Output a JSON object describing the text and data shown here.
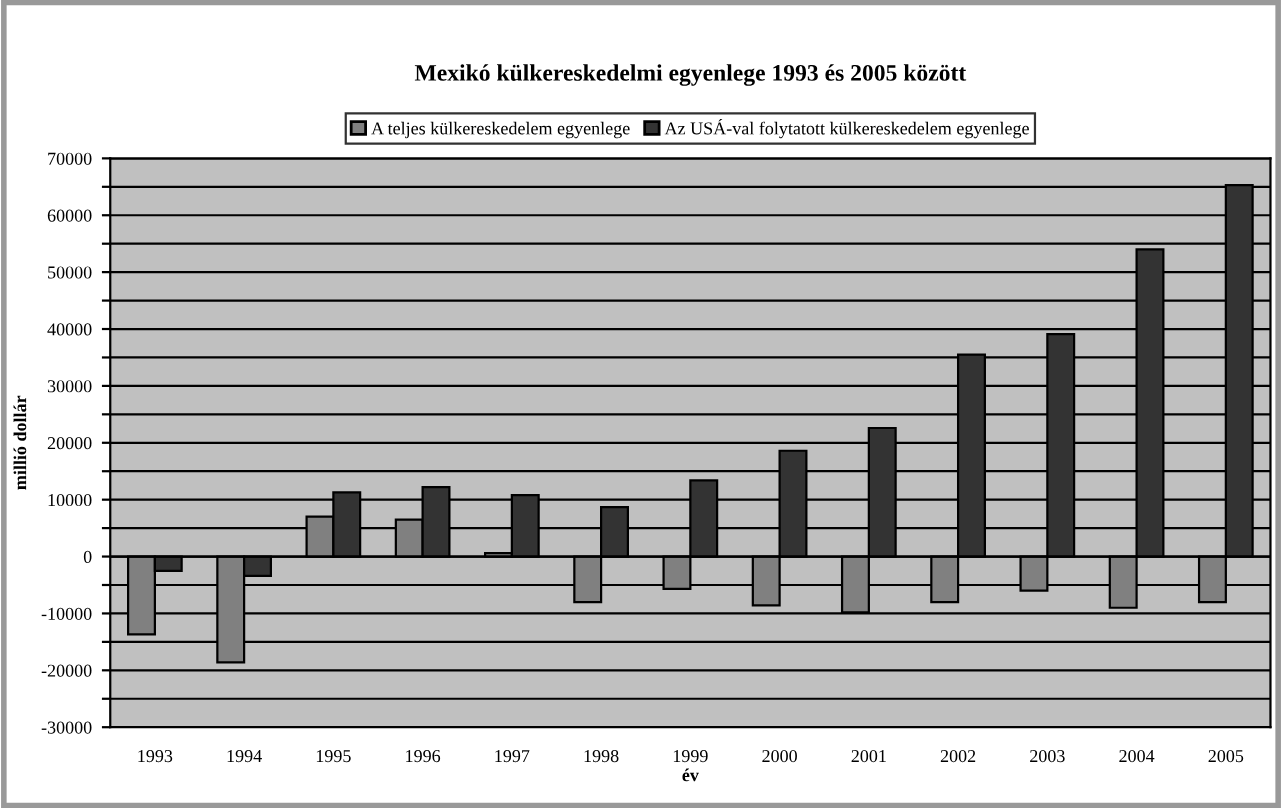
{
  "chart_data": {
    "type": "bar",
    "title": "Mexikó külkereskedelmi egyenlege 1993 és 2005 között",
    "xlabel": "év",
    "ylabel": "millió dollár",
    "categories": [
      "1993",
      "1994",
      "1995",
      "1996",
      "1997",
      "1998",
      "1999",
      "2000",
      "2001",
      "2002",
      "2003",
      "2004",
      "2005"
    ],
    "series": [
      {
        "name": "A teljes külkereskedelem egyenlege",
        "color": "#808080",
        "values": [
          -13700,
          -18600,
          7000,
          6500,
          600,
          -8000,
          -5700,
          -8600,
          -9800,
          -8000,
          -6000,
          -9000,
          -8000
        ]
      },
      {
        "name": "Az USÁ-val folytatott külkereskedelem egyenlege",
        "color": "#333333",
        "values": [
          -2500,
          -3400,
          11300,
          12200,
          10800,
          8700,
          13400,
          18600,
          22600,
          35500,
          39100,
          54000,
          65300
        ]
      }
    ],
    "ylim": [
      -30000,
      70000
    ],
    "yticks": [
      -30000,
      {
        "value": -25000,
        "label": null
      },
      -20000,
      {
        "value": -15000,
        "label": null
      },
      -10000,
      {
        "value": -5000,
        "label": null
      },
      0,
      {
        "value": 5000,
        "label": null
      },
      10000,
      {
        "value": 15000,
        "label": null
      },
      20000,
      {
        "value": 25000,
        "label": null
      },
      30000,
      {
        "value": 35000,
        "label": null
      },
      40000,
      {
        "value": 45000,
        "label": null
      },
      50000,
      {
        "value": 55000,
        "label": null
      },
      60000,
      {
        "value": 65000,
        "label": null
      },
      70000
    ],
    "grid": "y",
    "legend": "top"
  }
}
